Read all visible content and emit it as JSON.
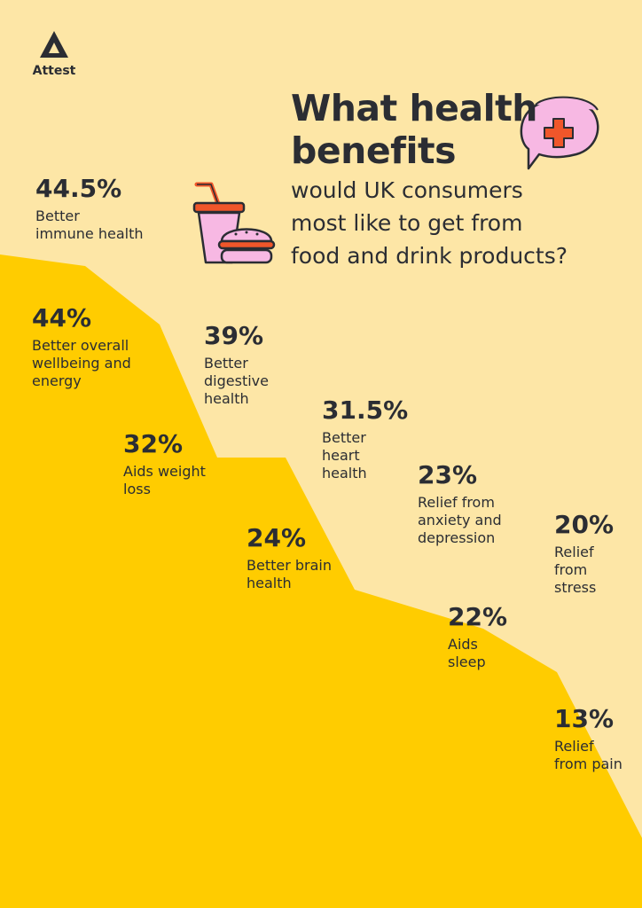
{
  "brand": {
    "name": "Attest"
  },
  "title_lines": [
    "What health",
    "benefits"
  ],
  "subtitle_lines": [
    "would UK consumers",
    "most like to get from",
    "food and drink products?"
  ],
  "colors": {
    "background": "#fde6a6",
    "area_fill": "#ffcc00",
    "text": "#2b2d33",
    "icon_pink": "#f7b8e3",
    "icon_orange": "#f0562a"
  },
  "icons": [
    "attest-logo-icon",
    "speech-bubble-medical-cross-icon",
    "drink-cup-icon",
    "burger-icon"
  ],
  "chart_data": {
    "type": "area",
    "unit": "%",
    "categories": [
      "Better immune health",
      "Better overall wellbeing and energy",
      "Better digestive health",
      "Aids weight loss",
      "Better heart health",
      "Better brain health",
      "Relief from anxiety and depression",
      "Aids sleep",
      "Relief from stress",
      "Relief from pain"
    ],
    "values": [
      44.5,
      44,
      39,
      32,
      31.5,
      24,
      23,
      22,
      20,
      13
    ],
    "value_labels": [
      "44.5%",
      "44%",
      "39%",
      "32%",
      "31.5%",
      "24%",
      "23%",
      "22%",
      "20%",
      "13%"
    ],
    "label_lines": [
      [
        "Better",
        "immune health"
      ],
      [
        "Better overall",
        "wellbeing and",
        "energy"
      ],
      [
        "Better",
        "digestive",
        "health"
      ],
      [
        "Aids weight",
        "loss"
      ],
      [
        "Better",
        "heart",
        "health"
      ],
      [
        "Better brain",
        "health"
      ],
      [
        "Relief from",
        "anxiety and",
        "depression"
      ],
      [
        "Aids",
        "sleep"
      ],
      [
        "Relief",
        "from",
        "stress"
      ],
      [
        "Relief",
        "from pain"
      ]
    ],
    "grid": false,
    "legend": "none"
  }
}
